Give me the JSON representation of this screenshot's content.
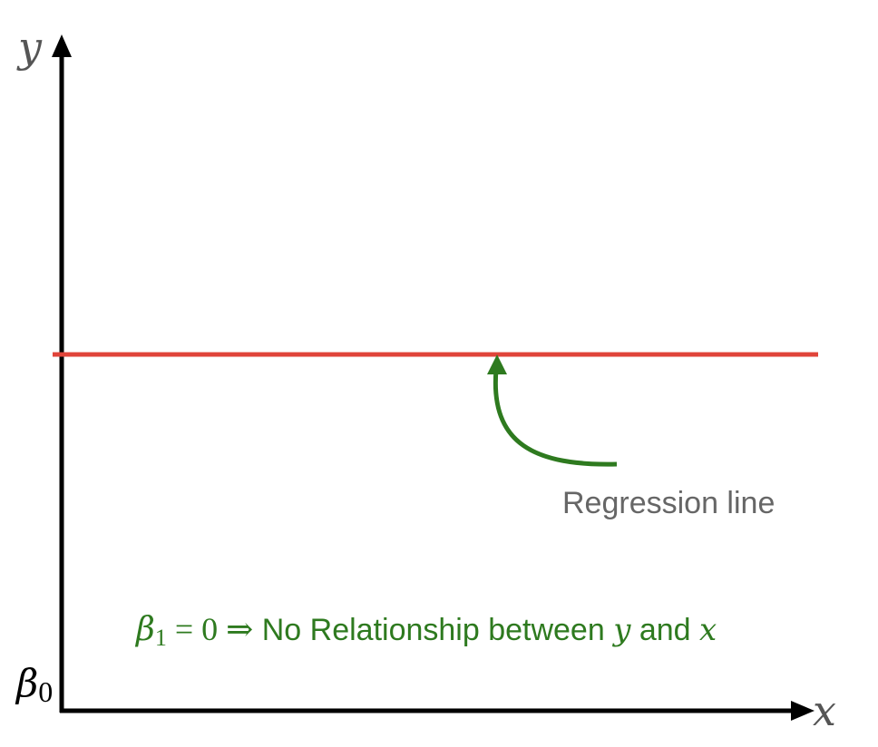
{
  "axes": {
    "y_label": "y",
    "x_label": "x",
    "intercept_symbol": "β",
    "intercept_subscript": "0"
  },
  "annotation": {
    "label": "Regression line"
  },
  "statement": {
    "beta_symbol": "β",
    "beta_subscript": "1",
    "equals_zero": " = 0 ⇒",
    "text_before": " No Relationship between ",
    "var_y": "y",
    "text_and": " and ",
    "var_x": "x"
  },
  "colors": {
    "axis": "#000000",
    "regression_line": "#e0443a",
    "arrow": "#2e7a1f",
    "statement_text": "#2e7a1f",
    "annotation_text": "#666666",
    "axis_label_text": "#555555"
  }
}
